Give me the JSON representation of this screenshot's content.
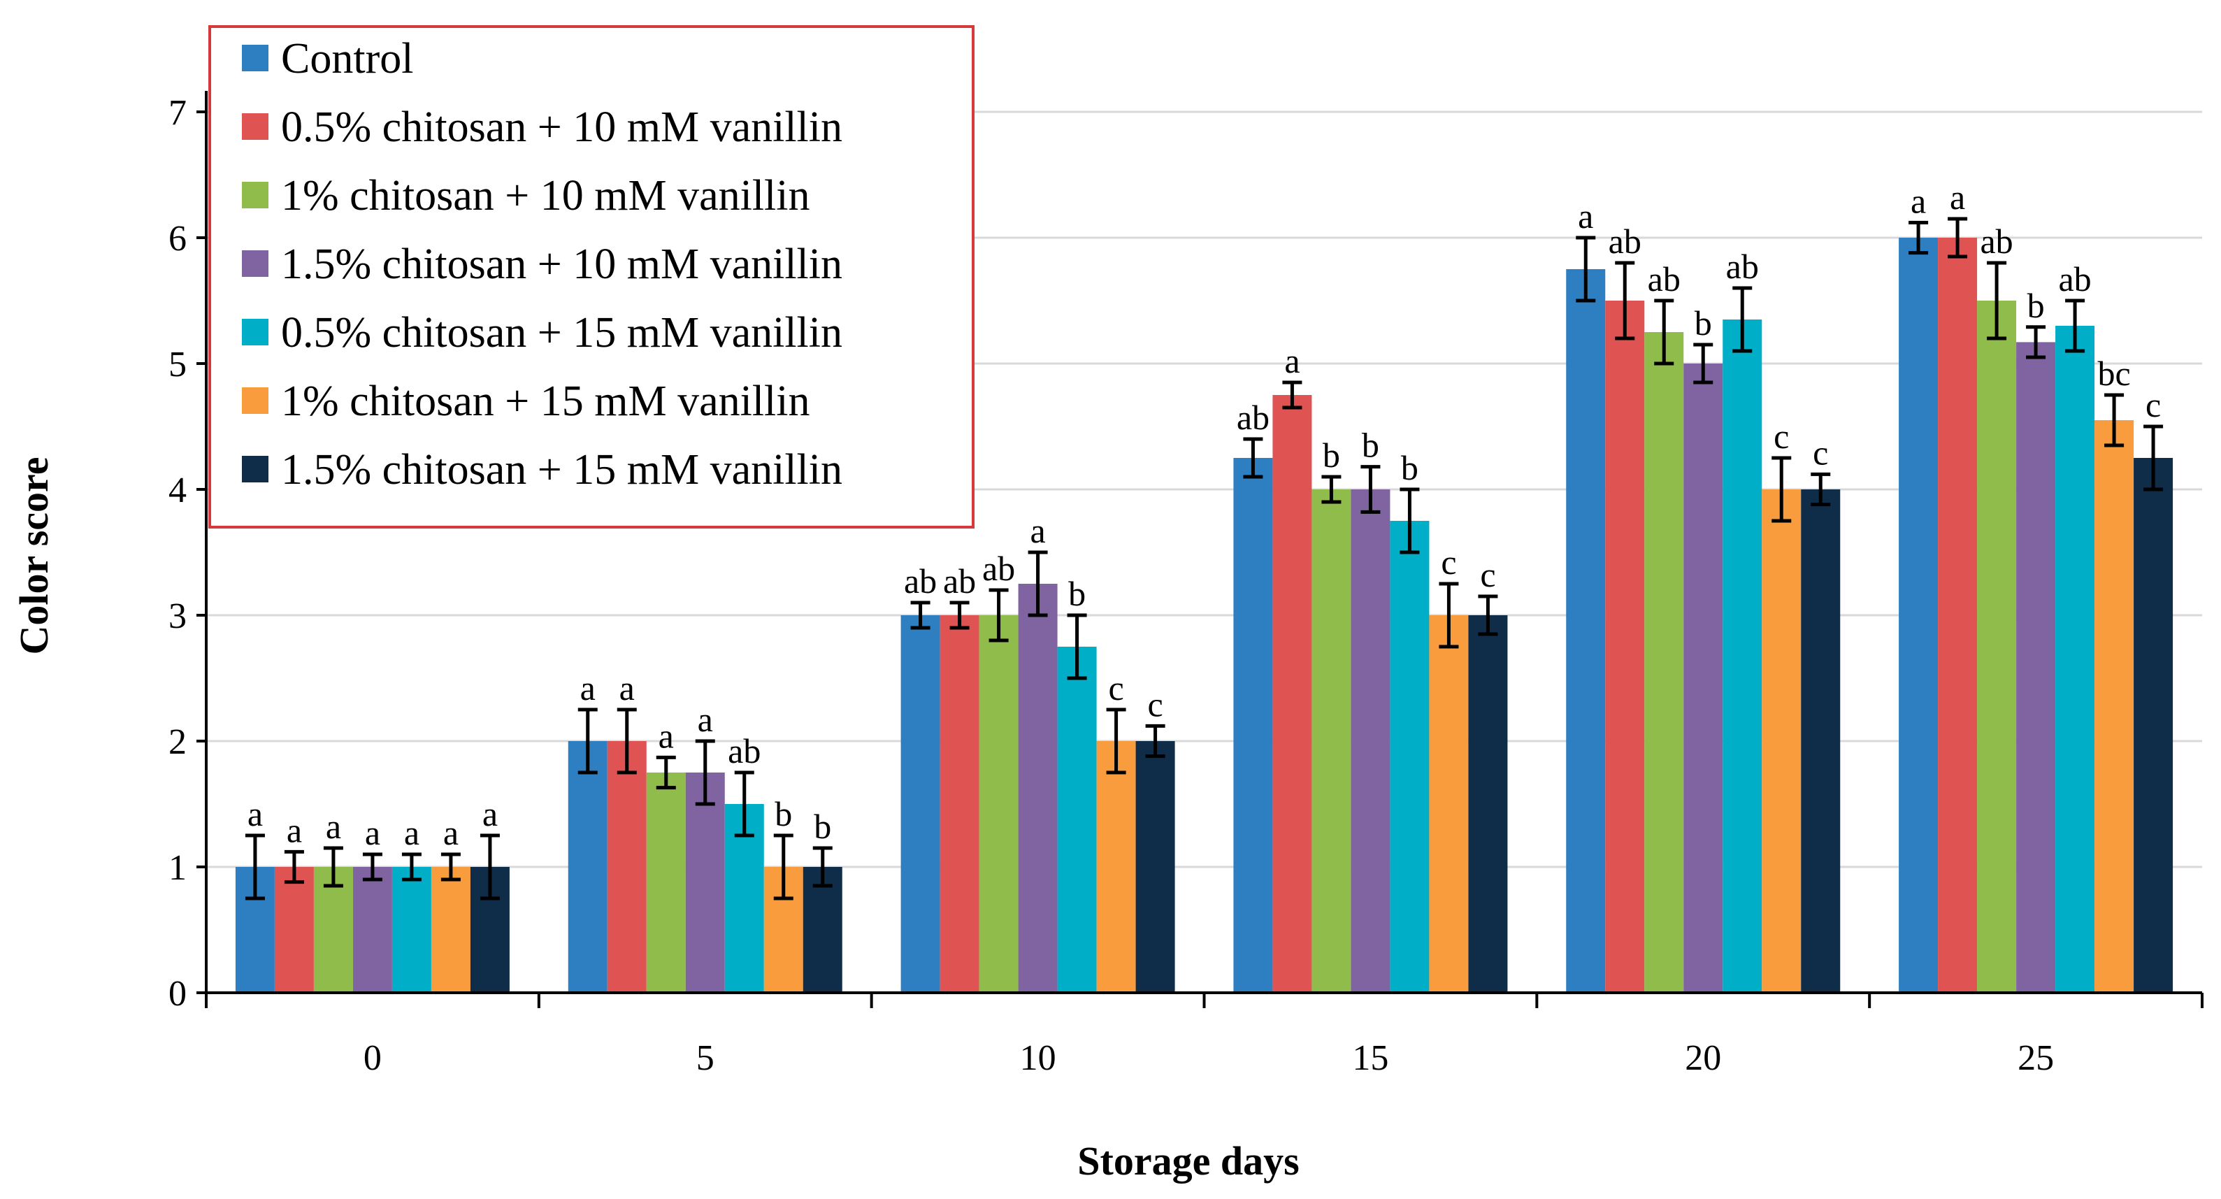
{
  "chart_data": {
    "type": "bar",
    "xlabel": "Storage days",
    "ylabel": "Color score",
    "ylim": [
      0,
      7
    ],
    "yticks": [
      0,
      1,
      2,
      3,
      4,
      5,
      6,
      7
    ],
    "grid": "horizontal",
    "legend_position": "top-left",
    "categories": [
      "0",
      "5",
      "10",
      "15",
      "20",
      "25"
    ],
    "series": [
      {
        "name": "Control",
        "color": "#2e7fc1",
        "values": [
          1,
          2,
          3,
          4.25,
          5.75,
          6
        ],
        "errors": [
          0.25,
          0.25,
          0.1,
          0.15,
          0.25,
          0.12
        ],
        "labels": [
          "a",
          "a",
          "ab",
          "ab",
          "a",
          "a"
        ]
      },
      {
        "name": "0.5% chitosan + 10 mM vanillin",
        "color": "#e05353",
        "values": [
          1,
          2,
          3,
          4.75,
          5.5,
          6
        ],
        "errors": [
          0.12,
          0.25,
          0.1,
          0.1,
          0.3,
          0.15
        ],
        "labels": [
          "a",
          "a",
          "ab",
          "a",
          "ab",
          "a"
        ]
      },
      {
        "name": "1% chitosan + 10 mM vanillin",
        "color": "#8fbc4a",
        "values": [
          1,
          1.75,
          3,
          4,
          5.25,
          5.5
        ],
        "errors": [
          0.15,
          0.12,
          0.2,
          0.1,
          0.25,
          0.3
        ],
        "labels": [
          "a",
          "a",
          "ab",
          "b",
          "ab",
          "ab"
        ]
      },
      {
        "name": "1.5% chitosan + 10 mM vanillin",
        "color": "#8064a2",
        "values": [
          1,
          1.75,
          3.25,
          4,
          5,
          5.17
        ],
        "errors": [
          0.1,
          0.25,
          0.25,
          0.18,
          0.15,
          0.12
        ],
        "labels": [
          "a",
          "a",
          "a",
          "b",
          "b",
          "b"
        ]
      },
      {
        "name": "0.5% chitosan + 15 mM vanillin",
        "color": "#00aec7",
        "values": [
          1,
          1.5,
          2.75,
          3.75,
          5.35,
          5.3
        ],
        "errors": [
          0.1,
          0.25,
          0.25,
          0.25,
          0.25,
          0.2
        ],
        "labels": [
          "a",
          "ab",
          "b",
          "b",
          "ab",
          "ab"
        ]
      },
      {
        "name": "1% chitosan + 15 mM vanillin",
        "color": "#f89c3d",
        "values": [
          1,
          1,
          2,
          3,
          4,
          4.55
        ],
        "errors": [
          0.1,
          0.25,
          0.25,
          0.25,
          0.25,
          0.2
        ],
        "labels": [
          "a",
          "b",
          "c",
          "c",
          "c",
          "bc"
        ]
      },
      {
        "name": "1.5% chitosan + 15 mM vanillin",
        "color": "#0f2d48",
        "values": [
          1,
          1,
          2,
          3,
          4,
          4.25
        ],
        "errors": [
          0.25,
          0.15,
          0.12,
          0.15,
          0.12,
          0.25
        ],
        "labels": [
          "a",
          "b",
          "c",
          "c",
          "c",
          "c"
        ]
      }
    ],
    "legend_border_color": "#d63a3a",
    "axis_color": "#000000",
    "grid_color": "#d9d9d9"
  }
}
